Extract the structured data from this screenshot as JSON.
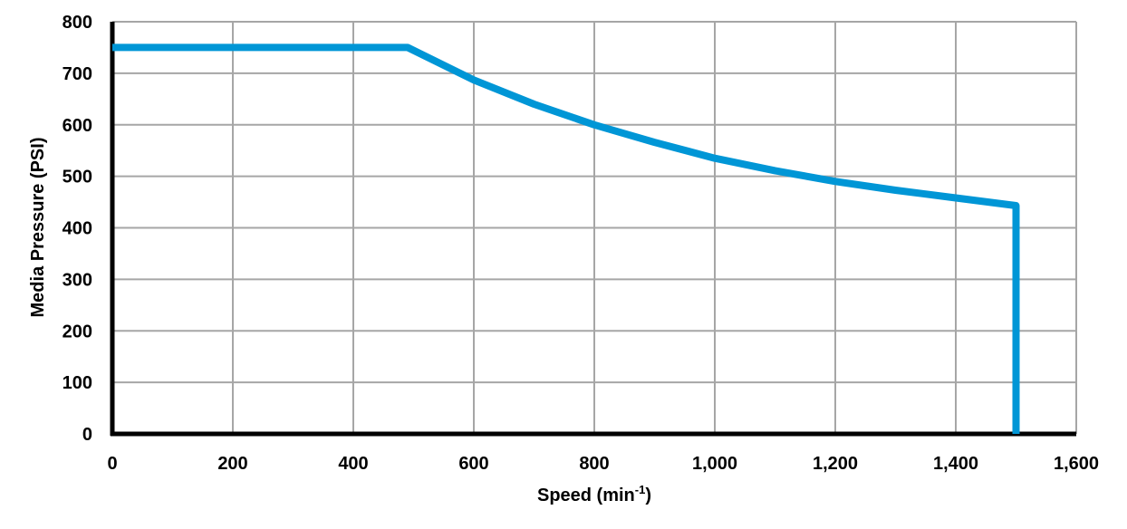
{
  "chart_data": {
    "type": "line",
    "title": "",
    "xlabel": "Speed (min-1)",
    "xlabel_main": "Speed (min",
    "xlabel_sup": "-1",
    "xlabel_close": ")",
    "ylabel": "Media Pressure (PSI)",
    "xlim": [
      0,
      1600
    ],
    "ylim": [
      0,
      800
    ],
    "grid": true,
    "legend": null,
    "x_ticks": [
      0,
      200,
      400,
      600,
      800,
      1000,
      1200,
      1400,
      1600
    ],
    "x_tick_labels": [
      "0",
      "200",
      "400",
      "600",
      "800",
      "1,000",
      "1,200",
      "1,400",
      "1,600"
    ],
    "y_ticks": [
      0,
      100,
      200,
      300,
      400,
      500,
      600,
      700,
      800
    ],
    "y_tick_labels": [
      "0",
      "100",
      "200",
      "300",
      "400",
      "500",
      "600",
      "700",
      "800"
    ],
    "series": [
      {
        "name": "Media Pressure",
        "color": "#0096d6",
        "x": [
          0,
          490,
          600,
          700,
          800,
          900,
          1000,
          1100,
          1200,
          1300,
          1400,
          1500,
          1500
        ],
        "y": [
          750,
          750,
          687,
          640,
          600,
          566,
          535,
          511,
          490,
          473,
          458,
          443,
          0
        ]
      }
    ]
  },
  "colors": {
    "line": "#0096d6",
    "grid": "#a6a6a6",
    "axis": "#000000"
  }
}
